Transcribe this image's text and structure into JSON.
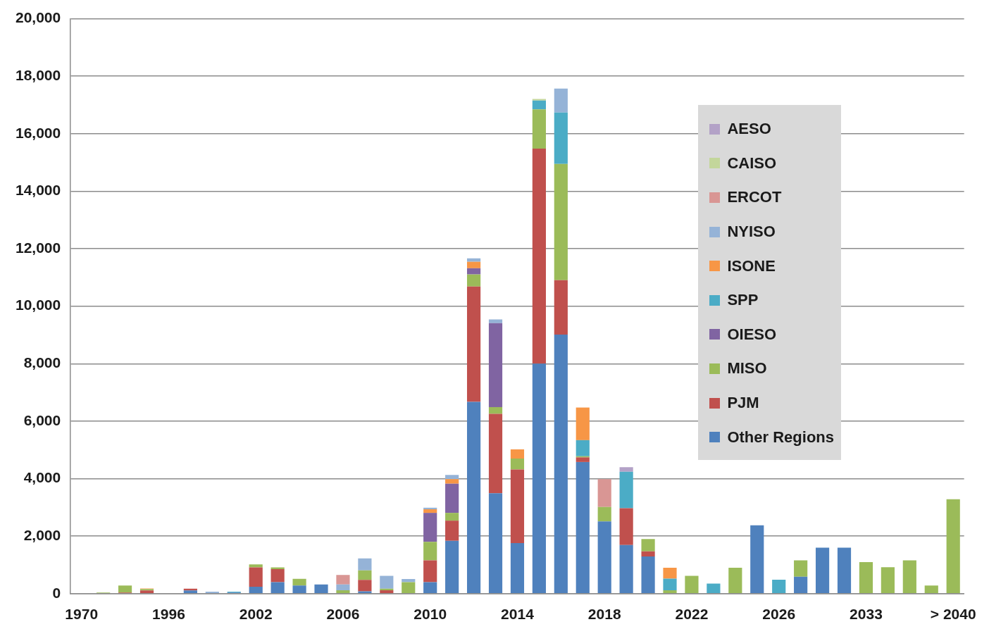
{
  "chart_data": {
    "type": "bar",
    "stacked": true,
    "grid": "y",
    "legend": "right",
    "categories": [
      "1970",
      null,
      null,
      null,
      "1996",
      null,
      null,
      null,
      "2002",
      null,
      null,
      null,
      "2006",
      null,
      null,
      null,
      "2010",
      null,
      null,
      null,
      "2014",
      null,
      null,
      null,
      "2018",
      null,
      null,
      null,
      "2022",
      null,
      null,
      null,
      "2026",
      null,
      null,
      null,
      "2033",
      null,
      null,
      null,
      "> 2040"
    ],
    "ylim": [
      0,
      20000
    ],
    "yticks": [
      0,
      {
        "value": 2000,
        "label": "2,000"
      },
      {
        "value": 4000,
        "label": "4,000"
      },
      {
        "value": 6000,
        "label": "6,000"
      },
      {
        "value": 8000,
        "label": "8,000"
      },
      {
        "value": 10000,
        "label": "10,000"
      },
      {
        "value": 12000,
        "label": "12,000"
      },
      {
        "value": 14000,
        "label": "14,000"
      },
      {
        "value": 16000,
        "label": "16,000"
      },
      {
        "value": 18000,
        "label": "18,000"
      },
      {
        "value": 20000,
        "label": "20,000"
      }
    ],
    "series": [
      {
        "name": "Other Regions",
        "color": "#4f81bd",
        "values": [
          null,
          null,
          null,
          null,
          null,
          110,
          null,
          40,
          240,
          400,
          280,
          320,
          null,
          80,
          null,
          null,
          400,
          1840,
          6675,
          3490,
          1760,
          8000,
          9010,
          4580,
          2515,
          1695,
          1295,
          null,
          null,
          null,
          null,
          2380,
          null,
          590,
          1600,
          1600,
          null,
          null,
          null,
          null,
          null
        ]
      },
      {
        "name": "PJM",
        "color": "#c0504d",
        "values": [
          null,
          null,
          40,
          110,
          null,
          65,
          null,
          null,
          675,
          450,
          null,
          null,
          null,
          400,
          120,
          null,
          760,
          700,
          4010,
          2765,
          2560,
          7480,
          1895,
          160,
          null,
          1280,
          175,
          null,
          null,
          null,
          null,
          null,
          null,
          null,
          null,
          null,
          null,
          null,
          null,
          null,
          null
        ]
      },
      {
        "name": "MISO",
        "color": "#9bbb59",
        "values": [
          null,
          40,
          240,
          50,
          null,
          null,
          null,
          null,
          105,
          65,
          235,
          null,
          120,
          330,
          55,
          400,
          640,
          270,
          420,
          235,
          380,
          1370,
          4045,
          40,
          500,
          null,
          430,
          120,
          620,
          null,
          900,
          null,
          null,
          570,
          null,
          null,
          1100,
          920,
          1160,
          285,
          3285
        ]
      },
      {
        "name": "OIESO",
        "color": "#8064a2",
        "values": [
          null,
          null,
          null,
          null,
          null,
          null,
          null,
          null,
          null,
          null,
          null,
          null,
          null,
          null,
          null,
          null,
          1010,
          1015,
          215,
          2920,
          null,
          null,
          null,
          null,
          null,
          null,
          null,
          null,
          null,
          null,
          null,
          null,
          null,
          null,
          null,
          null,
          null,
          null,
          null,
          null,
          null
        ]
      },
      {
        "name": "SPP",
        "color": "#4bacc6",
        "values": [
          null,
          null,
          null,
          null,
          null,
          null,
          null,
          30,
          null,
          null,
          null,
          null,
          null,
          null,
          null,
          null,
          null,
          null,
          null,
          null,
          null,
          305,
          1790,
          560,
          null,
          1265,
          null,
          405,
          null,
          350,
          null,
          null,
          485,
          null,
          null,
          null,
          null,
          null,
          null,
          null,
          null
        ]
      },
      {
        "name": "ISONE",
        "color": "#f79646",
        "values": [
          null,
          null,
          null,
          20,
          null,
          null,
          null,
          null,
          null,
          null,
          null,
          null,
          null,
          null,
          null,
          null,
          125,
          160,
          225,
          null,
          320,
          null,
          null,
          1135,
          null,
          null,
          null,
          375,
          null,
          null,
          null,
          null,
          null,
          null,
          null,
          null,
          null,
          null,
          null,
          null,
          null
        ]
      },
      {
        "name": "NYISO",
        "color": "#95b3d7",
        "values": [
          null,
          null,
          null,
          null,
          null,
          null,
          70,
          null,
          null,
          null,
          null,
          null,
          200,
          415,
          445,
          110,
          55,
          145,
          120,
          130,
          null,
          null,
          830,
          null,
          null,
          null,
          null,
          null,
          null,
          null,
          null,
          null,
          null,
          null,
          null,
          null,
          null,
          null,
          null,
          null,
          null
        ]
      },
      {
        "name": "ERCOT",
        "color": "#d99694",
        "values": [
          null,
          null,
          null,
          null,
          null,
          null,
          null,
          null,
          null,
          null,
          null,
          null,
          330,
          null,
          null,
          null,
          null,
          null,
          null,
          null,
          null,
          null,
          null,
          null,
          970,
          null,
          null,
          null,
          null,
          null,
          null,
          null,
          null,
          null,
          null,
          null,
          null,
          null,
          null,
          null,
          null
        ]
      },
      {
        "name": "CAISO",
        "color": "#c3d69b",
        "values": [
          null,
          null,
          null,
          null,
          null,
          null,
          null,
          null,
          null,
          null,
          null,
          null,
          null,
          null,
          null,
          null,
          null,
          null,
          null,
          null,
          null,
          55,
          null,
          null,
          null,
          null,
          null,
          null,
          null,
          null,
          null,
          null,
          null,
          null,
          null,
          null,
          null,
          null,
          null,
          null,
          null
        ]
      },
      {
        "name": "AESO",
        "color": "#b3a2c7",
        "values": [
          null,
          null,
          null,
          null,
          null,
          null,
          null,
          null,
          null,
          null,
          null,
          null,
          null,
          null,
          null,
          null,
          null,
          null,
          null,
          null,
          null,
          null,
          null,
          null,
          null,
          160,
          null,
          null,
          null,
          null,
          null,
          null,
          null,
          null,
          null,
          null,
          null,
          null,
          null,
          null,
          null
        ]
      }
    ]
  }
}
